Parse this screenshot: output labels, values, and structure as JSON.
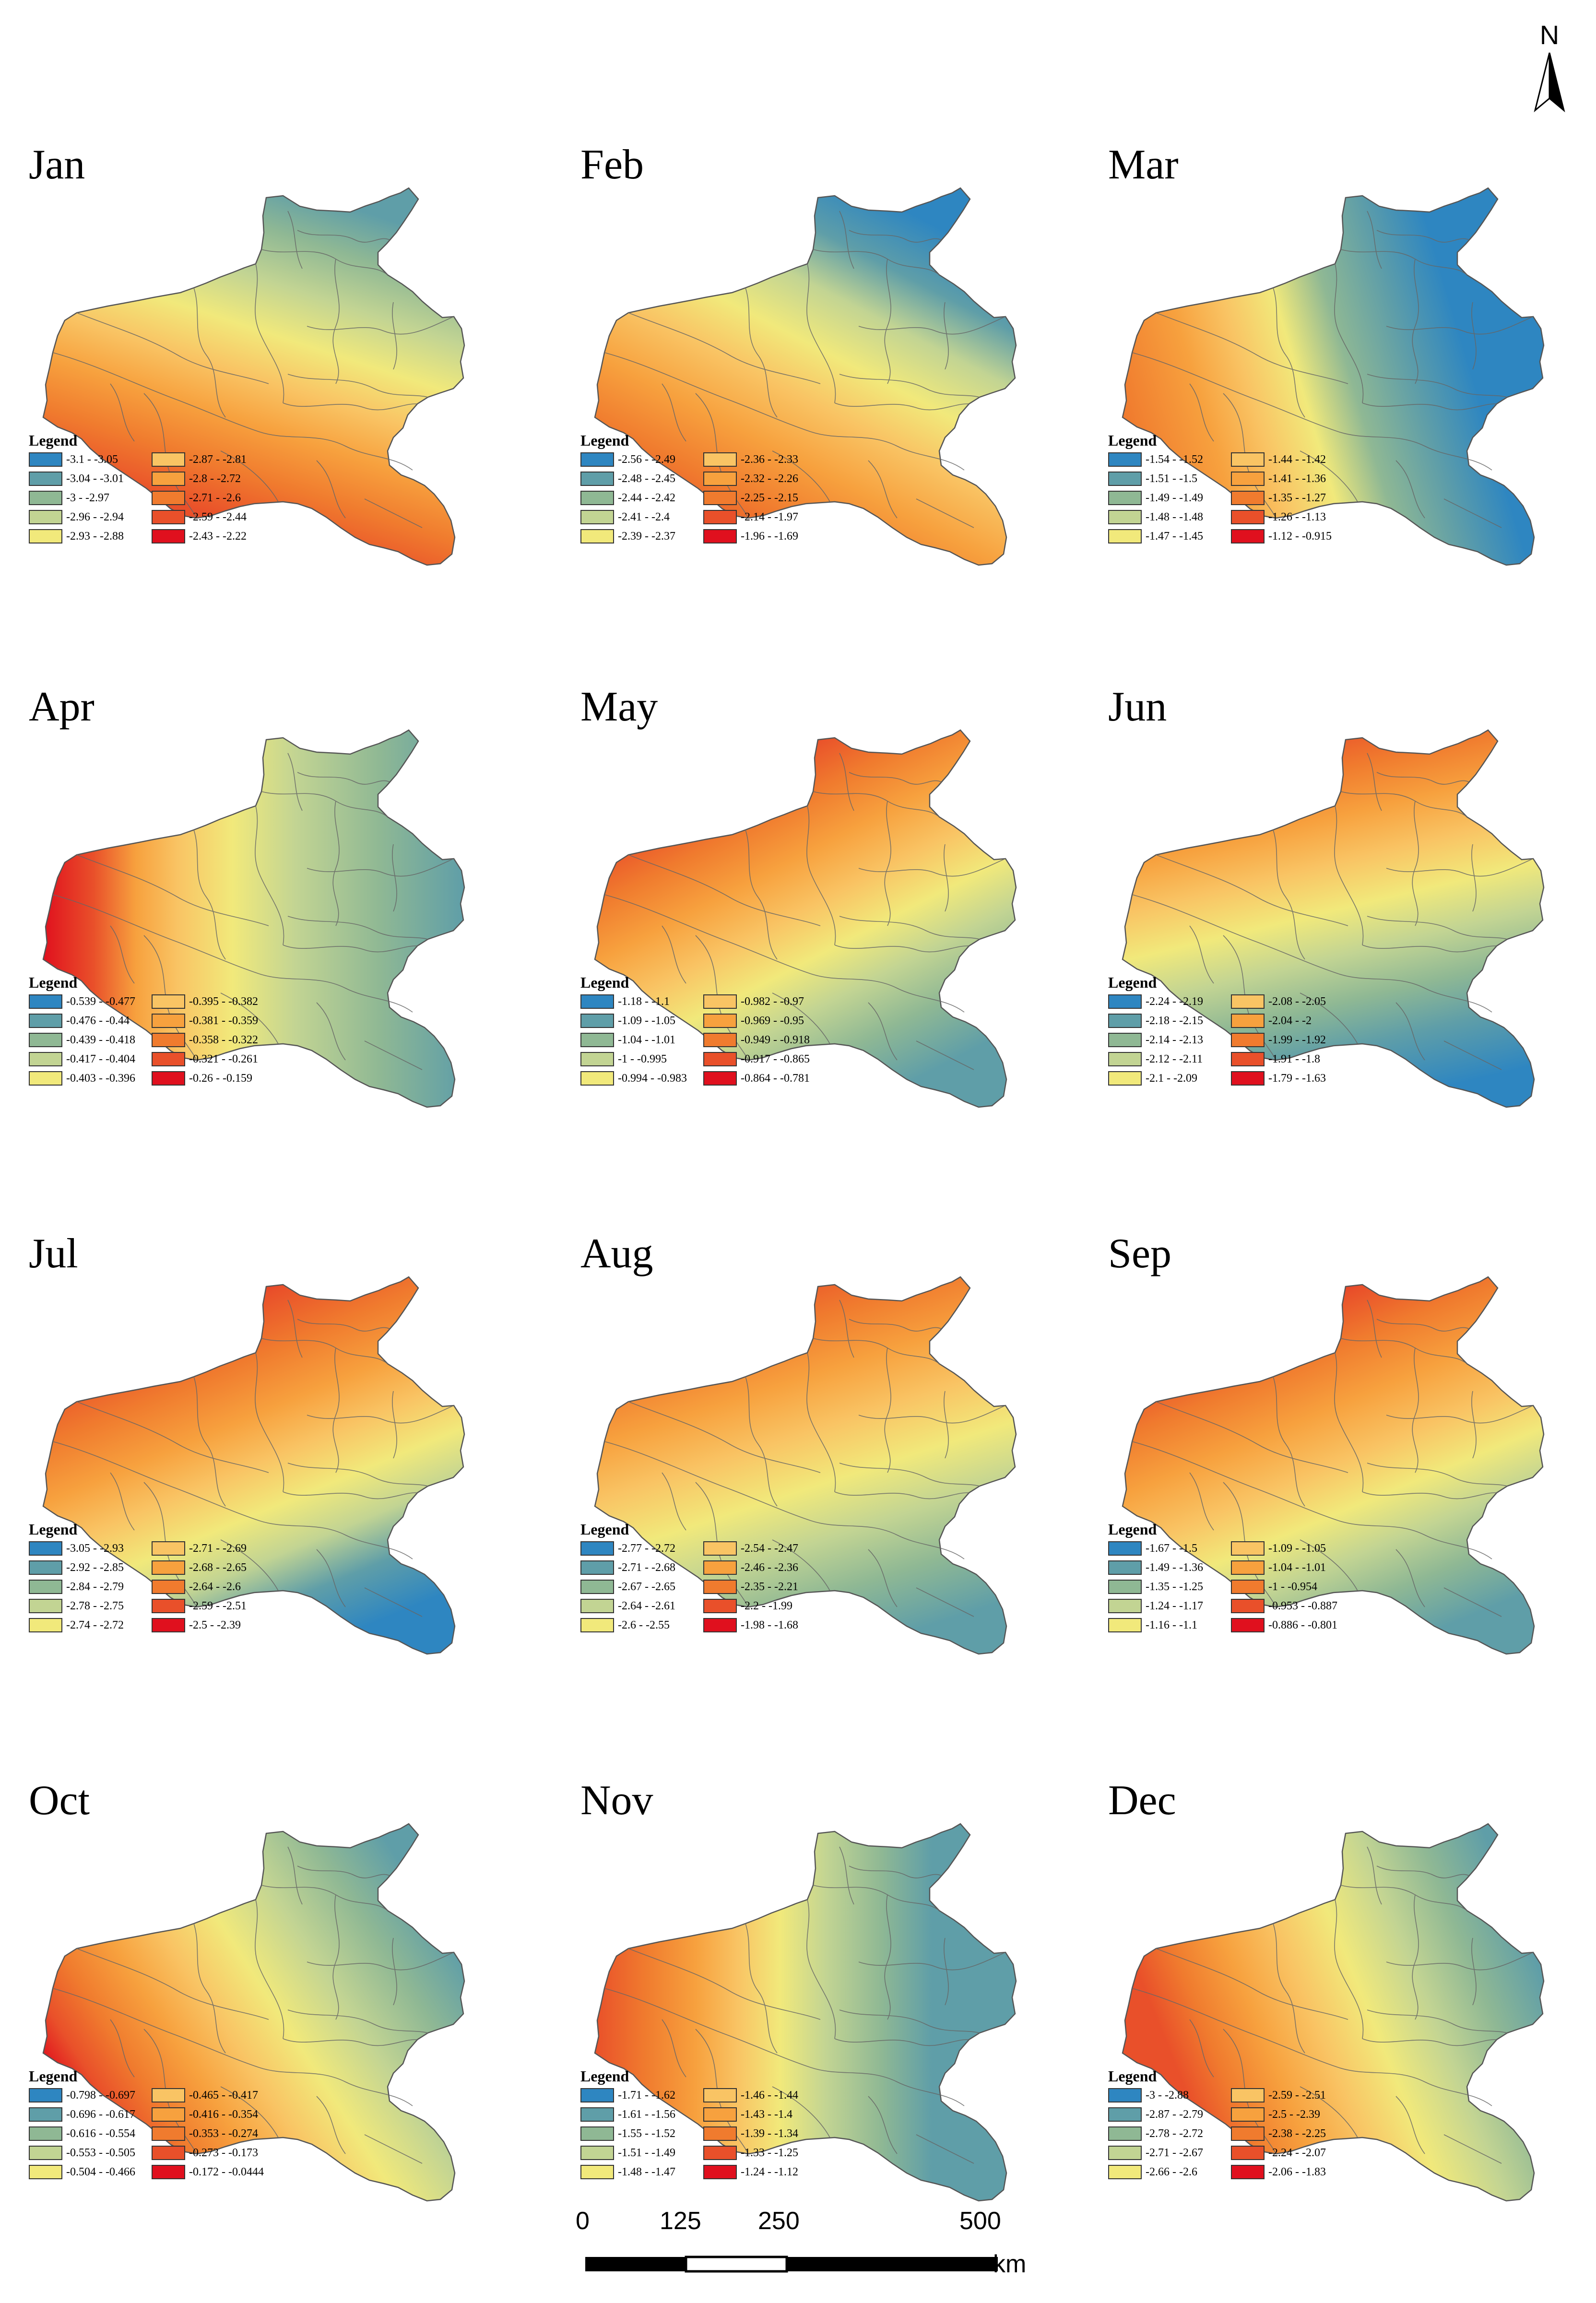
{
  "north_label": "N",
  "scale_bar": {
    "ticks": [
      "0",
      "125",
      "250",
      "500"
    ],
    "unit": "km"
  },
  "legend_title": "Legend",
  "palette": [
    "#2e86c1",
    "#5f9ea8",
    "#8fb894",
    "#c2d493",
    "#f1e97b",
    "#f9c464",
    "#f7a13e",
    "#f07b2e",
    "#e9502a",
    "#e0101e"
  ],
  "months": [
    {
      "title": "Jan",
      "legend": [
        "-3.1 - -3.05",
        "-3.04 - -3.01",
        "-3 - -2.97",
        "-2.96 - -2.94",
        "-2.93 - -2.88",
        "-2.87 - -2.81",
        "-2.8 - -2.72",
        "-2.71 - -2.6",
        "-2.59 - -2.44",
        "-2.43 - -2.22"
      ]
    },
    {
      "title": "Feb",
      "legend": [
        "-2.56 - -2.49",
        "-2.48 - -2.45",
        "-2.44 - -2.42",
        "-2.41 - -2.4",
        "-2.39 - -2.37",
        "-2.36 - -2.33",
        "-2.32 - -2.26",
        "-2.25 - -2.15",
        "-2.14 - -1.97",
        "-1.96 - -1.69"
      ]
    },
    {
      "title": "Mar",
      "legend": [
        "-1.54 - -1.52",
        "-1.51 - -1.5",
        "-1.49 - -1.49",
        "-1.48 - -1.48",
        "-1.47 - -1.45",
        "-1.44 - -1.42",
        "-1.41 - -1.36",
        "-1.35 - -1.27",
        "-1.26 - -1.13",
        "-1.12 - -0.915"
      ]
    },
    {
      "title": "Apr",
      "legend": [
        "-0.539 - -0.477",
        "-0.476 - -0.44",
        "-0.439 - -0.418",
        "-0.417 - -0.404",
        "-0.403 - -0.396",
        "-0.395 - -0.382",
        "-0.381 - -0.359",
        "-0.358 - -0.322",
        "-0.321 - -0.261",
        "-0.26 - -0.159"
      ]
    },
    {
      "title": "May",
      "legend": [
        "-1.18 - -1.1",
        "-1.09 - -1.05",
        "-1.04 - -1.01",
        "-1 - -0.995",
        "-0.994 - -0.983",
        "-0.982 - -0.97",
        "-0.969 - -0.95",
        "-0.949 - -0.918",
        "-0.917 - -0.865",
        "-0.864 - -0.781"
      ]
    },
    {
      "title": "Jun",
      "legend": [
        "-2.24 - -2.19",
        "-2.18 - -2.15",
        "-2.14 - -2.13",
        "-2.12 - -2.11",
        "-2.1 - -2.09",
        "-2.08 - -2.05",
        "-2.04 - -2",
        "-1.99 - -1.92",
        "-1.91 - -1.8",
        "-1.79 - -1.63"
      ]
    },
    {
      "title": "Jul",
      "legend": [
        "-3.05 - -2.93",
        "-2.92 - -2.85",
        "-2.84 - -2.79",
        "-2.78 - -2.75",
        "-2.74 - -2.72",
        "-2.71 - -2.69",
        "-2.68 - -2.65",
        "-2.64 - -2.6",
        "-2.59 - -2.51",
        "-2.5 - -2.39"
      ]
    },
    {
      "title": "Aug",
      "legend": [
        "-2.77 - -2.72",
        "-2.71 - -2.68",
        "-2.67 - -2.65",
        "-2.64 - -2.61",
        "-2.6 - -2.55",
        "-2.54 - -2.47",
        "-2.46 - -2.36",
        "-2.35 - -2.21",
        "-2.2 - -1.99",
        "-1.98 - -1.68"
      ]
    },
    {
      "title": "Sep",
      "legend": [
        "-1.67 - -1.5",
        "-1.49 - -1.36",
        "-1.35 - -1.25",
        "-1.24 - -1.17",
        "-1.16 - -1.1",
        "-1.09 - -1.05",
        "-1.04 - -1.01",
        "-1 - -0.954",
        "-0.953 - -0.887",
        "-0.886 - -0.801"
      ]
    },
    {
      "title": "Oct",
      "legend": [
        "-0.798 - -0.697",
        "-0.696 - -0.617",
        "-0.616 - -0.554",
        "-0.553 - -0.505",
        "-0.504 - -0.466",
        "-0.465 - -0.417",
        "-0.416 - -0.354",
        "-0.353 - -0.274",
        "-0.273 - -0.173",
        "-0.172 - -0.0444"
      ]
    },
    {
      "title": "Nov",
      "legend": [
        "-1.71 - -1.62",
        "-1.61 - -1.56",
        "-1.55 - -1.52",
        "-1.51 - -1.49",
        "-1.48 - -1.47",
        "-1.46 - -1.44",
        "-1.43 - -1.4",
        "-1.39 - -1.34",
        "-1.33 - -1.25",
        "-1.24 - -1.12"
      ]
    },
    {
      "title": "Dec",
      "legend": [
        "-3 - -2.88",
        "-2.87 - -2.79",
        "-2.78 - -2.72",
        "-2.71 - -2.67",
        "-2.66 - -2.6",
        "-2.59 - -2.51",
        "-2.5 - -2.39",
        "-2.38 - -2.25",
        "-2.24 - -2.07",
        "-2.06 - -1.83"
      ]
    }
  ]
}
